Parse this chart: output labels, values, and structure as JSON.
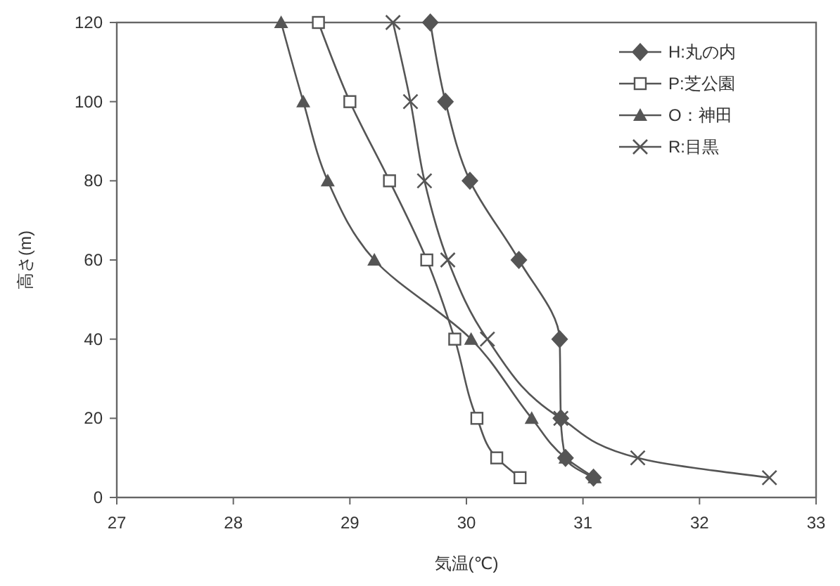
{
  "chart_data": {
    "type": "line",
    "xlabel": "気温(℃)",
    "ylabel": "高さ(m)",
    "xlim": [
      27,
      33
    ],
    "xticks": [
      27,
      28,
      29,
      30,
      31,
      32,
      33
    ],
    "ylim": [
      0,
      120
    ],
    "yticks": [
      0,
      20,
      40,
      60,
      80,
      100,
      120
    ],
    "legend": "top right",
    "grid": false,
    "line_style": "solid",
    "series": [
      {
        "name": "H:丸の内",
        "color": "#555555",
        "marker": "diamond",
        "x": [
          29.69,
          29.82,
          30.03,
          30.45,
          30.8,
          30.81,
          30.85,
          31.09
        ],
        "values": [
          120,
          100,
          80,
          60,
          40,
          20,
          10,
          5
        ]
      },
      {
        "name": "P:芝公園",
        "color": "#555555",
        "marker": "square",
        "x": [
          28.73,
          29.0,
          29.34,
          29.66,
          29.9,
          30.09,
          30.26,
          30.46
        ],
        "values": [
          120,
          100,
          80,
          60,
          40,
          20,
          10,
          5
        ]
      },
      {
        "name": "O：神田",
        "color": "#555555",
        "marker": "triangle",
        "x": [
          28.41,
          28.6,
          28.81,
          29.21,
          30.04,
          30.56,
          30.85,
          31.1
        ],
        "values": [
          120,
          100,
          80,
          60,
          40,
          20,
          10,
          5
        ]
      },
      {
        "name": "R:目黒",
        "color": "#555555",
        "marker": "cross",
        "x": [
          29.37,
          29.52,
          29.64,
          29.84,
          30.18,
          30.81,
          31.47,
          32.6
        ],
        "values": [
          120,
          100,
          80,
          60,
          40,
          20,
          10,
          5
        ]
      }
    ]
  }
}
